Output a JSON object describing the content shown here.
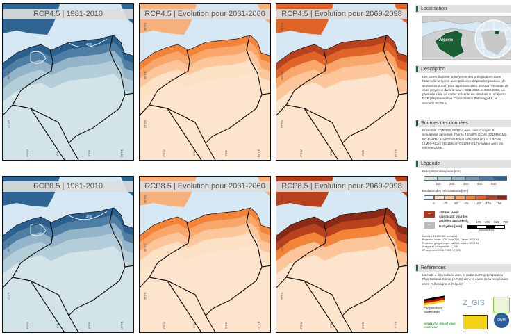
{
  "panels": [
    {
      "title": "RCP4.5 | 1981-2010",
      "scheme": "base",
      "contour": "400"
    },
    {
      "title": "RCP4.5 | Evolution pour 2031-2060",
      "scheme": "evo1",
      "contour": ""
    },
    {
      "title": "RCP4.5 | Evolution pour 2069-2098",
      "scheme": "evo2",
      "contour": ""
    },
    {
      "title": "RCP8.5 | 1981-2010",
      "scheme": "base",
      "contour": "400"
    },
    {
      "title": "RCP8.5 | Evolution pour 2031-2060",
      "scheme": "evo1",
      "contour": ""
    },
    {
      "title": "RCP8.5 | Evolution pour 2069-2098",
      "scheme": "evo3",
      "contour": ""
    }
  ],
  "axes": {
    "bottom": [
      "5°0'W",
      "0°0'",
      "5°0'E",
      "10°0'E"
    ],
    "left": [
      "35°0'N",
      "30°0'N",
      "25°0'N"
    ]
  },
  "sidebar": {
    "localisation": {
      "title": "Localisation",
      "country": "Algérie"
    },
    "description": {
      "title": "Description",
      "text": "Les cartes illustrent la moyenne des précipitations dans l'intervalle temporel avec présence d'épisodes pluvieux (de septembre à mai) pour la période 1981-2010 et l'évolution de cette moyenne dans le futur : 2031-2060 et 2069-2098. La première série de cartes présente les résultats du scénario RCP (Representative Concentration Pathway) 4.5, la seconde RCP8.5."
    },
    "sources": {
      "title": "Sources des données",
      "text": "Ensemble CORDEX AFRICA avec biais corrigés: 8 simulations générées d'après 4 CMIP5 GCMs (CNRM-CM5, EC-EARTH, HadGEM2-ES et MPI-ESM-LR) et 2 RCMs (SMHI-RCA4 et CLMcom-CCLM4-8-17) réalisés avec les mêmes GCMs."
    },
    "legende": {
      "title": "Légende",
      "precip_title": "Précipitation moyenne [mm]",
      "precip_colors": [
        "#d3e4e8",
        "#b3cdd9",
        "#93b4c9",
        "#7199b7",
        "#4f7ea5",
        "#2b5f8e"
      ],
      "precip_ticks": [
        "100",
        "200",
        "300",
        "400",
        "500"
      ],
      "evo_title": "Evolution des précipitations [mm]",
      "evo_colors": [
        "#eaf3fb",
        "#fde1c4",
        "#fcc69a",
        "#f9a66a",
        "#f28339",
        "#e06327",
        "#b8421e",
        "#8a2a15"
      ],
      "evo_ticks": [
        "0",
        "-25",
        "-50",
        "-75",
        "-100",
        "-125",
        "-150"
      ],
      "threshold": "400mm (seuil significatif pour les activités agricoles)",
      "isohyetes": "Isohyètes [mm]",
      "scale_ticks": [
        "0",
        "175",
        "350",
        "525",
        "700"
      ],
      "scale_unit": "Kilomètres",
      "meta": [
        "Echelle 1:15.000.000 format A3",
        "Projection locale: UTM Zone 31N, Datum: WGS 84",
        "Projection géographique: Lat/Lon, Datum: WGS 84",
        "Analyse et Cartographie: Z_GIS",
        "27 septembre 2016 © GIZ / Z_GIS"
      ]
    },
    "references": {
      "title": "Références",
      "text": "La carte a été réalisée dans le cadre du Projet d'appui au Plan National Climat (APNC) dans le cadre de la coopération entre l'Allemagne et l'Algérie",
      "logos": [
        "coopération allemande",
        "Z_GIS",
        "GEOMATIC SOLUTIONS COMPANY",
        "ONM"
      ]
    }
  }
}
